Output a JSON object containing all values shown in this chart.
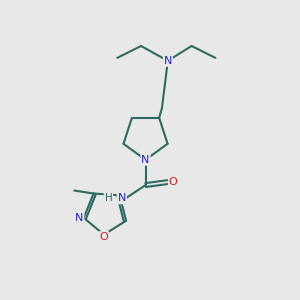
{
  "bg_color": "#e8e8e8",
  "bond_color": "#2d6b5e",
  "N_color": "#2323cc",
  "O_color": "#cc2020",
  "line_width": 1.5,
  "fig_size": [
    3.0,
    3.0
  ],
  "dpi": 100,
  "xlim": [
    0,
    10
  ],
  "ylim": [
    0,
    10
  ]
}
